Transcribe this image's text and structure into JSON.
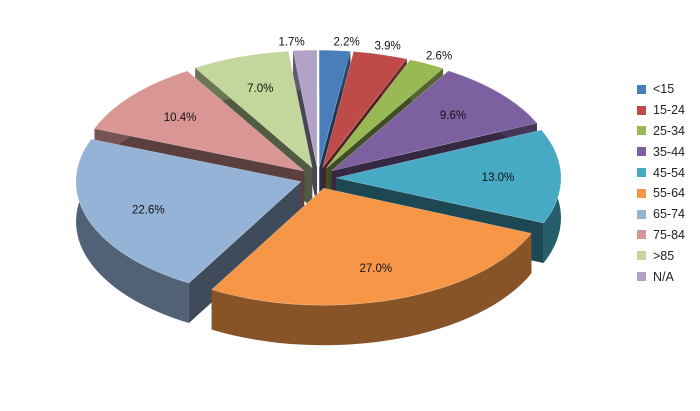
{
  "chart_data": {
    "type": "pie",
    "style": "3d-exploded",
    "legend_position": "right",
    "categories": [
      "<15",
      "15-24",
      "25-34",
      "35-44",
      "45-54",
      "55-64",
      "65-74",
      "75-84",
      ">85",
      "N/A"
    ],
    "values": [
      2.2,
      3.9,
      2.6,
      9.6,
      13.0,
      27.0,
      22.6,
      10.4,
      7.0,
      1.7
    ],
    "labels": [
      "2.2%",
      "3.9%",
      "2.6%",
      "9.6%",
      "13.0%",
      "27.0%",
      "22.6%",
      "10.4%",
      "7.0%",
      "1.7%"
    ],
    "colors": [
      "#4a7ebb",
      "#be4b48",
      "#98b954",
      "#7d60a0",
      "#46aac5",
      "#f79646",
      "#95b3d7",
      "#d99694",
      "#c3d69b",
      "#b3a2c7"
    ]
  }
}
